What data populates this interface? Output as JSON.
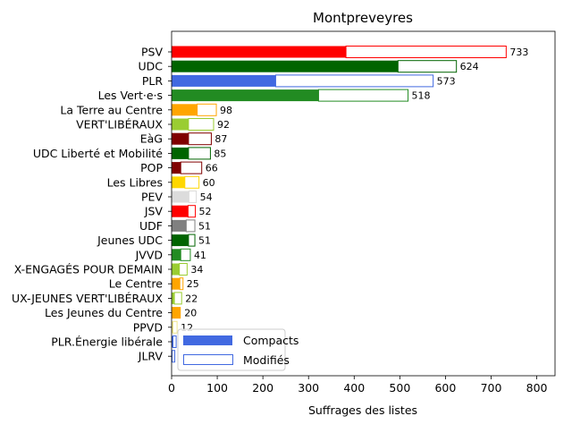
{
  "chart_data": {
    "type": "bar",
    "orientation": "horizontal",
    "title": "Montpreveyres",
    "xlabel": "Suffrages des listes",
    "ylabel": "",
    "xlim": [
      0,
      840
    ],
    "xticks": [
      0,
      100,
      200,
      300,
      400,
      500,
      600,
      700,
      800
    ],
    "grid": false,
    "legend": {
      "placement": "lower-left",
      "entries": [
        {
          "label": "Compacts",
          "style": "filled",
          "color": "#4169e1"
        },
        {
          "label": "Modifiés",
          "style": "outline",
          "color": "#4169e1"
        }
      ]
    },
    "series": [
      {
        "name": "Compacts",
        "values": [
          382,
          496,
          228,
          322,
          56,
          37,
          37,
          37,
          20,
          29,
          38,
          36,
          32,
          37,
          20,
          17,
          18,
          6,
          20,
          3,
          3,
          1
        ]
      },
      {
        "name": "Modifiés",
        "values": [
          351,
          128,
          345,
          196,
          42,
          55,
          50,
          48,
          46,
          31,
          16,
          16,
          19,
          14,
          21,
          17,
          7,
          16,
          0,
          9,
          7,
          6
        ]
      }
    ],
    "categories": [
      "PSV",
      "UDC",
      "PLR",
      "Les Vert·e·s",
      "La Terre au Centre",
      "VERT'LIBÉRAUX",
      "EàG",
      "UDC Liberté et Mobilité",
      "POP",
      "Les Libres",
      "PEV",
      "JSV",
      "UDF",
      "Jeunes UDC",
      "JVVD",
      "X-ENGAGÉS POUR DEMAIN",
      "Le Centre",
      "UX-JEUNES VERT'LIBÉRAUX",
      "Les Jeunes du Centre",
      "PPVD",
      "PLR.Énergie libérale",
      "JLRV"
    ],
    "totals": [
      733,
      624,
      573,
      518,
      98,
      92,
      87,
      85,
      66,
      60,
      54,
      52,
      51,
      51,
      41,
      34,
      25,
      22,
      20,
      12,
      10,
      7
    ],
    "totals_labels": [
      "733",
      "624",
      "573",
      "518",
      "98",
      "92",
      "87",
      "85",
      "66",
      "60",
      "54",
      "52",
      "51",
      "51",
      "41",
      "34",
      "25",
      "22",
      "20",
      "12",
      "",
      ""
    ],
    "colors": [
      "#ff0000",
      "#006400",
      "#4169e1",
      "#228b22",
      "#ffa500",
      "#9acd32",
      "#800000",
      "#006400",
      "#800000",
      "#ffd700",
      "#dcdcdc",
      "#ff0000",
      "#808080",
      "#006400",
      "#228b22",
      "#9acd32",
      "#ffa500",
      "#9acd32",
      "#ffa500",
      "#f0e68c",
      "#4169e1",
      "#4169e1"
    ]
  }
}
